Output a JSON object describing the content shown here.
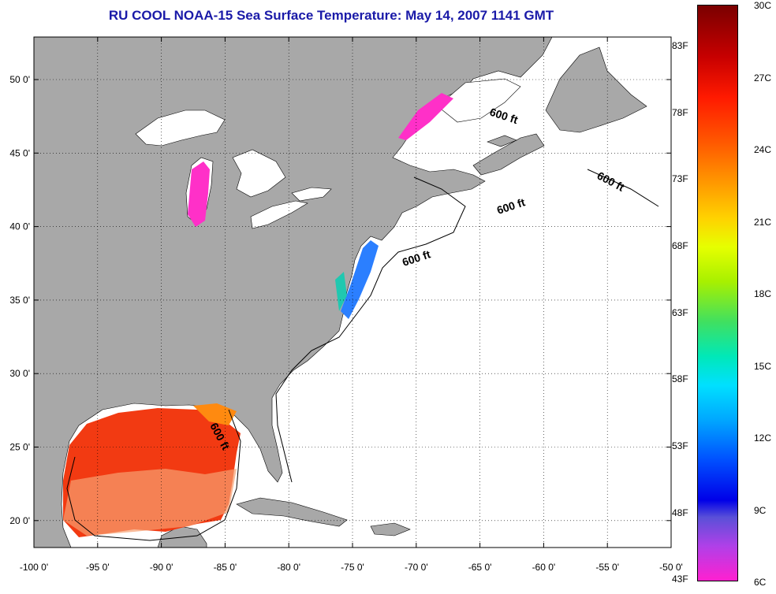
{
  "title": "RU COOL  NOAA-15  Sea Surface Temperature:  May 14, 2007 1141 GMT",
  "lat_labels": [
    "50 0'",
    "45 0'",
    "40 0'",
    "35 0'",
    "30 0'",
    "25 0'",
    "20 0'"
  ],
  "lon_labels": [
    "-100 0'",
    "-95 0'",
    "-90 0'",
    "-85 0'",
    "-80 0'",
    "-75 0'",
    "-70 0'",
    "-65 0'",
    "-60 0'",
    "-55 0'",
    "-50 0'"
  ],
  "isobath_label": "600 ft",
  "colorbar": {
    "fahrenheit": [
      "83F",
      "78F",
      "73F",
      "68F",
      "63F",
      "58F",
      "53F",
      "48F",
      "43F"
    ],
    "celsius": [
      "30C",
      "27C",
      "24C",
      "21C",
      "18C",
      "15C",
      "12C",
      "9C",
      "6C"
    ]
  },
  "colors": {
    "land": "#a8a8a8",
    "ocean": "#ffffff",
    "title": "#1a1aa8"
  }
}
